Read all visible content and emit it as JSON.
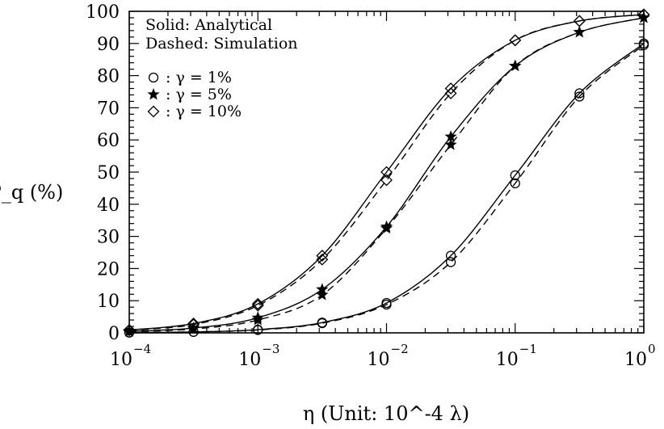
{
  "chart_data": {
    "type": "line",
    "xscale": "log",
    "xlim": [
      0.0001,
      1
    ],
    "ylim": [
      0,
      100
    ],
    "xlabel": "η (Unit: 10^-4 λ)",
    "ylabel": "P_q (%)",
    "grid": false,
    "legend_position": "top-left",
    "legend": {
      "line_styles": [
        "Solid: Analytical",
        "Dashed: Simulation"
      ],
      "markers": [
        {
          "symbol": "circle",
          "label": ": γ = 1%"
        },
        {
          "symbol": "star",
          "label": ": γ = 5%"
        },
        {
          "symbol": "diamond",
          "label": ": γ = 10%"
        }
      ]
    },
    "x_ticks": [
      {
        "base": "10",
        "exp": "−4"
      },
      {
        "base": "10",
        "exp": "−3"
      },
      {
        "base": "10",
        "exp": "−2"
      },
      {
        "base": "10",
        "exp": "−1"
      },
      {
        "base": "10",
        "exp": "0"
      }
    ],
    "y_ticks": [
      "0",
      "10",
      "20",
      "30",
      "40",
      "50",
      "60",
      "70",
      "80",
      "90",
      "100"
    ],
    "x": [
      0.0001,
      0.000316,
      0.001,
      0.00316,
      0.01,
      0.0316,
      0.1,
      0.316,
      1
    ],
    "series": [
      {
        "name": "γ = 1%",
        "marker": "circle",
        "style": "solid",
        "values": [
          0.1,
          0.3,
          1.0,
          3.2,
          9.3,
          24.0,
          49.0,
          74.5,
          90.0
        ]
      },
      {
        "name": "γ = 1%",
        "marker": "circle",
        "style": "dashed",
        "values": [
          0.1,
          0.3,
          0.9,
          3.0,
          8.8,
          22.0,
          46.5,
          73.5,
          89.5
        ]
      },
      {
        "name": "γ = 5%",
        "marker": "star",
        "style": "solid",
        "values": [
          0.5,
          1.5,
          4.7,
          13.5,
          33.0,
          61.0,
          83.0,
          93.5,
          98.0
        ]
      },
      {
        "name": "γ = 5%",
        "marker": "star",
        "style": "dashed",
        "values": [
          0.4,
          1.2,
          4.0,
          11.8,
          32.5,
          58.5,
          83.0,
          93.5,
          98.0
        ]
      },
      {
        "name": "γ = 10%",
        "marker": "diamond",
        "style": "solid",
        "values": [
          0.9,
          2.9,
          9.0,
          24.0,
          50.0,
          76.0,
          91.0,
          97.0,
          99.0
        ]
      },
      {
        "name": "γ = 10%",
        "marker": "diamond",
        "style": "dashed",
        "values": [
          0.8,
          2.6,
          8.5,
          22.8,
          47.5,
          74.5,
          91.0,
          97.0,
          99.0
        ]
      }
    ]
  }
}
